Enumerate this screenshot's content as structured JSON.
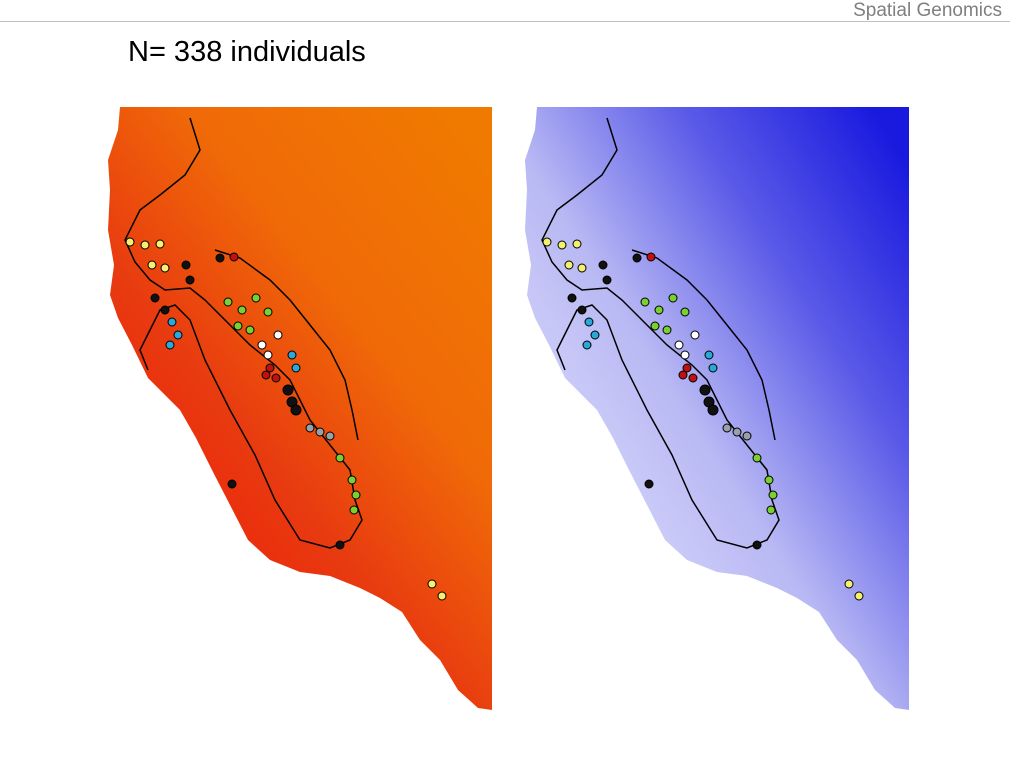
{
  "header": {
    "title": "Spatial Genomics"
  },
  "slide": {
    "title": "N= 338 individuals"
  }
}
